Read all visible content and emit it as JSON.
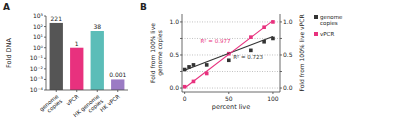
{
  "chart_data": [
    {
      "type": "bar",
      "title": "A",
      "categories": [
        "genome\ncopies",
        "vPCR",
        "HK genome\ncopies",
        "HK vPCR"
      ],
      "values": [
        221,
        1,
        38,
        0.001
      ],
      "colors": [
        "#555555",
        "#e8317e",
        "#5bbdb8",
        "#9b7bc4"
      ],
      "ylabel": "Fold DNA",
      "log": "y",
      "ylim": [
        0.0001,
        1000
      ],
      "yticks": [
        {
          "value": 0.0001,
          "label": "10⁻⁴"
        },
        {
          "value": 0.001,
          "label": "10⁻³"
        },
        {
          "value": 0.01,
          "label": "10⁻²"
        },
        {
          "value": 0.1,
          "label": "10⁻¹"
        },
        {
          "value": 1,
          "label": "10⁰"
        },
        {
          "value": 10,
          "label": "10¹"
        },
        {
          "value": 100,
          "label": "10²"
        },
        {
          "value": 1000,
          "label": "10³"
        }
      ],
      "data_labels": true
    },
    {
      "type": "scatter",
      "title": "B",
      "xlabel": "percent live",
      "ylabel": "Fold from 100% live\ngenome copies",
      "y2label": "Fold from 100% live vPCR",
      "xlim": [
        -3,
        108
      ],
      "xticks": [
        0,
        50,
        100
      ],
      "ylim": [
        -0.06,
        1.12
      ],
      "yticks": [
        {
          "value": 0.0,
          "label": "0.0"
        },
        {
          "value": 0.25,
          "label": null
        },
        0.5,
        {
          "value": 0.75,
          "label": null
        },
        {
          "value": 1.0,
          "label": "1.0"
        }
      ],
      "y2lim": [
        -0.06,
        1.12
      ],
      "y2ticks": [
        {
          "value": 0.0,
          "label": "0.0"
        },
        {
          "value": 0.25,
          "label": null
        },
        0.5,
        {
          "value": 0.75,
          "label": null
        },
        {
          "value": 1.0,
          "label": "1.0"
        }
      ],
      "grid": true,
      "legend": "right",
      "series": [
        {
          "name": "genome\ncopies",
          "type": "scatter",
          "marker": "square",
          "color": "#333333",
          "x": [
            0,
            5,
            10,
            25,
            50,
            75,
            90,
            100
          ],
          "values": [
            0.28,
            0.32,
            0.35,
            0.35,
            0.42,
            0.57,
            0.7,
            0.75
          ]
        },
        {
          "name": "vPCR",
          "type": "scatter",
          "marker": "square",
          "color": "#e8317e",
          "x": [
            0,
            10,
            25,
            50,
            75,
            90,
            100
          ],
          "values": [
            0.02,
            0.1,
            0.22,
            0.52,
            0.77,
            0.92,
            1.0
          ]
        },
        {
          "type": "line",
          "color": "#333333",
          "x": [
            0,
            100
          ],
          "values": [
            0.27,
            0.78
          ]
        },
        {
          "type": "line",
          "color": "#e8317e",
          "x": [
            0,
            100
          ],
          "values": [
            0.0,
            1.02
          ]
        }
      ],
      "annotations": [
        {
          "text": "R² = 0.723",
          "x": 55,
          "y": 0.44,
          "color": "#333333"
        },
        {
          "text": "R² = 0.977",
          "x": 18,
          "y": 0.68,
          "color": "#e8317e"
        }
      ]
    }
  ]
}
